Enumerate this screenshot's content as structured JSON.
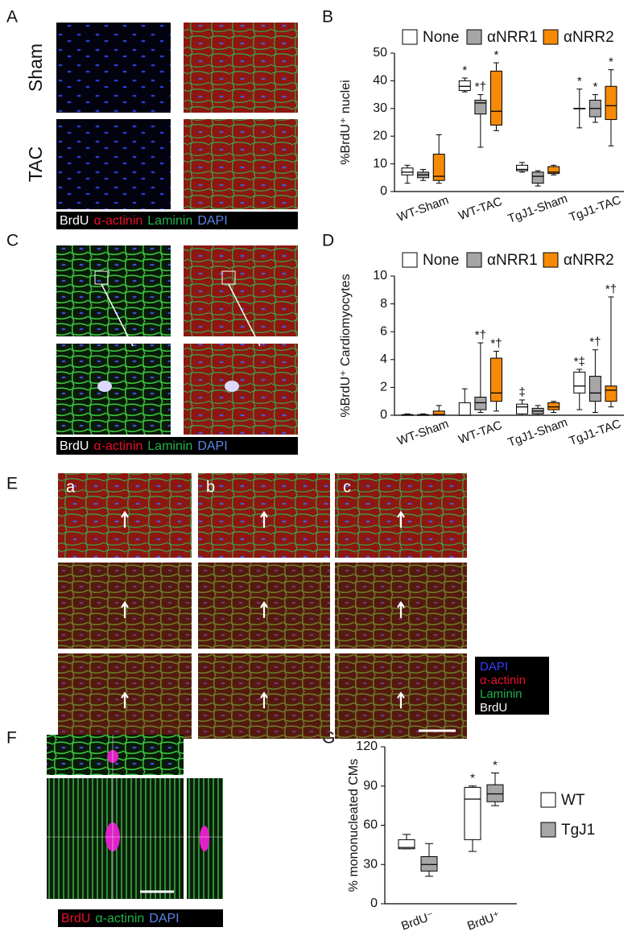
{
  "panels": {
    "labels": [
      "A",
      "B",
      "C",
      "D",
      "E",
      "F",
      "G"
    ],
    "A": {
      "rows": [
        "Sham",
        "TAC"
      ],
      "legend": [
        {
          "text": "BrdU",
          "color": "#ffffff"
        },
        {
          "text": "α-actinin",
          "color": "#e8102a"
        },
        {
          "text": "Laminin",
          "color": "#22b14c"
        },
        {
          "text": "DAPI",
          "color": "#5a86e6"
        }
      ]
    },
    "C": {
      "legend": [
        {
          "text": "BrdU",
          "color": "#ffffff"
        },
        {
          "text": "α-actinin",
          "color": "#e8102a"
        },
        {
          "text": "Laminin",
          "color": "#22b14c"
        },
        {
          "text": "DAPI",
          "color": "#5a86e6"
        }
      ]
    },
    "E": {
      "columns": [
        "a",
        "b",
        "c"
      ],
      "legend": [
        {
          "text": "DAPI",
          "color": "#3a3aff"
        },
        {
          "text": "α-actinin",
          "color": "#e8102a"
        },
        {
          "text": "Laminin",
          "color": "#22b14c"
        },
        {
          "text": "BrdU",
          "color": "#ffffff"
        }
      ]
    },
    "F": {
      "legend": [
        {
          "text": "BrdU",
          "color": "#e8102a"
        },
        {
          "text": "α-actinin",
          "color": "#22b14c"
        },
        {
          "text": "DAPI",
          "color": "#5a86e6"
        }
      ]
    }
  },
  "chart_data": [
    {
      "type": "box",
      "y_label": "%BrdU⁺ nuclei",
      "categories": [
        "WT-Sham",
        "WT-TAC",
        "TgJ1-Sham",
        "TgJ1-TAC"
      ],
      "ylim": [
        0,
        50
      ],
      "yticks": [
        0,
        10,
        20,
        30,
        40,
        50
      ],
      "legend": "top",
      "series": [
        {
          "name": "None",
          "color": "#ffffff",
          "values": [
            {
              "min": 3,
              "q1": 6,
              "median": 7,
              "q3": 8.5,
              "max": 9.5
            },
            {
              "min": 36,
              "q1": 36.5,
              "median": 38,
              "q3": 40,
              "max": 41
            },
            {
              "min": 7,
              "q1": 7.5,
              "median": 8,
              "q3": 9.5,
              "max": 10.5
            },
            {
              "min": 23,
              "q1": 30,
              "median": 30,
              "q3": 30,
              "max": 37
            }
          ],
          "annotations": [
            null,
            "*",
            null,
            "*"
          ]
        },
        {
          "name": "αNRR1",
          "color": "#a6a6a6",
          "values": [
            {
              "min": 4,
              "q1": 5,
              "median": 6,
              "q3": 7,
              "max": 8
            },
            {
              "min": 16,
              "q1": 28,
              "median": 32,
              "q3": 33,
              "max": 35
            },
            {
              "min": 2,
              "q1": 3,
              "median": 5.5,
              "q3": 7,
              "max": 7.5
            },
            {
              "min": 25,
              "q1": 27,
              "median": 30,
              "q3": 33,
              "max": 35
            }
          ],
          "annotations": [
            null,
            "*†",
            null,
            "*"
          ]
        },
        {
          "name": "αNRR2",
          "color": "#f58a07",
          "values": [
            {
              "min": 3,
              "q1": 4,
              "median": 5.5,
              "q3": 13.5,
              "max": 20.5
            },
            {
              "min": 22,
              "q1": 24,
              "median": 29,
              "q3": 43.5,
              "max": 46.5
            },
            {
              "min": 6,
              "q1": 6.5,
              "median": 7,
              "q3": 9,
              "max": 9.5
            },
            {
              "min": 16.5,
              "q1": 26,
              "median": 31,
              "q3": 38,
              "max": 44
            }
          ],
          "annotations": [
            null,
            "*",
            null,
            "*"
          ]
        }
      ]
    },
    {
      "type": "box",
      "y_label": "%BrdU⁺ Cardiomyocytes",
      "categories": [
        "WT-Sham",
        "WT-TAC",
        "TgJ1-Sham",
        "TgJ1-TAC"
      ],
      "ylim": [
        0,
        10
      ],
      "yticks": [
        0,
        2,
        4,
        6,
        8,
        10
      ],
      "legend": "top",
      "series": [
        {
          "name": "None",
          "color": "#ffffff",
          "values": [
            {
              "min": 0,
              "q1": 0,
              "median": 0,
              "q3": 0.05,
              "max": 0.1
            },
            {
              "min": 0,
              "q1": 0,
              "median": 0,
              "q3": 0.9,
              "max": 1.9
            },
            {
              "min": 0,
              "q1": 0.1,
              "median": 0.6,
              "q3": 0.8,
              "max": 1.1
            },
            {
              "min": 0.4,
              "q1": 1.6,
              "median": 2.1,
              "q3": 3.1,
              "max": 3.3
            }
          ],
          "annotations": [
            null,
            null,
            "‡",
            "*‡"
          ]
        },
        {
          "name": "αNRR1",
          "color": "#a6a6a6",
          "values": [
            {
              "min": 0,
              "q1": 0,
              "median": 0,
              "q3": 0.05,
              "max": 0.1
            },
            {
              "min": 0.2,
              "q1": 0.4,
              "median": 0.9,
              "q3": 1.3,
              "max": 5.2
            },
            {
              "min": 0,
              "q1": 0.1,
              "median": 0.3,
              "q3": 0.5,
              "max": 0.7
            },
            {
              "min": 0.2,
              "q1": 1,
              "median": 1.6,
              "q3": 2.8,
              "max": 4.7
            }
          ],
          "annotations": [
            null,
            "*†",
            null,
            "*†"
          ]
        },
        {
          "name": "αNRR2",
          "color": "#f58a07",
          "values": [
            {
              "min": 0,
              "q1": 0,
              "median": 0.05,
              "q3": 0.3,
              "max": 0.7
            },
            {
              "min": 0.3,
              "q1": 1,
              "median": 1.6,
              "q3": 4.1,
              "max": 4.6
            },
            {
              "min": 0.2,
              "q1": 0.4,
              "median": 0.6,
              "q3": 0.9,
              "max": 1
            },
            {
              "min": 0.6,
              "q1": 1,
              "median": 1.8,
              "q3": 2.1,
              "max": 8.5
            }
          ],
          "annotations": [
            null,
            "*†",
            null,
            "*†"
          ]
        }
      ]
    },
    {
      "type": "box",
      "y_label": "% mononucleated CMs",
      "categories": [
        "BrdU⁻",
        "BrdU⁺"
      ],
      "ylim": [
        0,
        120
      ],
      "yticks": [
        0,
        30,
        60,
        90,
        120
      ],
      "legend": "right",
      "series": [
        {
          "name": "WT",
          "color": "#ffffff",
          "values": [
            {
              "min": 42,
              "q1": 42,
              "median": 43,
              "q3": 49,
              "max": 53
            },
            {
              "min": 40,
              "q1": 49,
              "median": 80,
              "q3": 89,
              "max": 90
            }
          ],
          "annotations": [
            null,
            "*"
          ]
        },
        {
          "name": "TgJ1",
          "color": "#a6a6a6",
          "values": [
            {
              "min": 21,
              "q1": 25,
              "median": 30,
              "q3": 36,
              "max": 46
            },
            {
              "min": 75,
              "q1": 78,
              "median": 84,
              "q3": 91,
              "max": 100
            }
          ],
          "annotations": [
            null,
            "*"
          ]
        }
      ]
    }
  ]
}
